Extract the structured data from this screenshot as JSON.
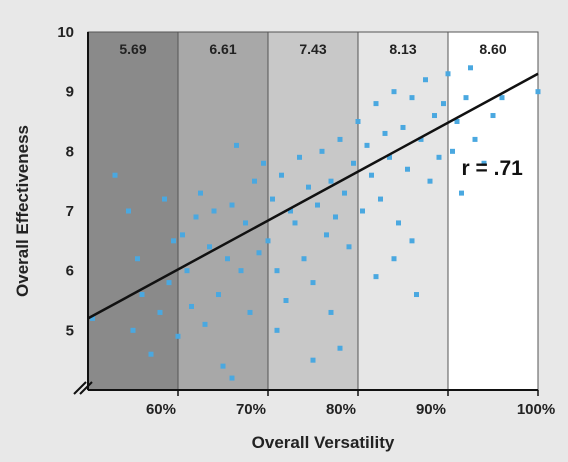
{
  "chart_data": {
    "type": "scatter",
    "title": "",
    "xlabel": "Overall Versatility",
    "ylabel": "Overall Effectiveness",
    "xlim": [
      50,
      100
    ],
    "ylim": [
      4,
      10
    ],
    "xticks": [
      {
        "value": 60,
        "label": "60%"
      },
      {
        "value": 70,
        "label": "70%"
      },
      {
        "value": 80,
        "label": "80%"
      },
      {
        "value": 90,
        "label": "90%"
      },
      {
        "value": 100,
        "label": "100%"
      }
    ],
    "yticks": [
      {
        "value": 5,
        "label": "5"
      },
      {
        "value": 6,
        "label": "6"
      },
      {
        "value": 7,
        "label": "7"
      },
      {
        "value": 8,
        "label": "8"
      },
      {
        "value": 9,
        "label": "9"
      },
      {
        "value": 10,
        "label": "10"
      }
    ],
    "bands": [
      {
        "from": 50,
        "to": 60,
        "label": "5.69",
        "color": "#8a8a8a"
      },
      {
        "from": 60,
        "to": 70,
        "label": "6.61",
        "color": "#a8a8a8"
      },
      {
        "from": 70,
        "to": 80,
        "label": "7.43",
        "color": "#c8c8c8"
      },
      {
        "from": 80,
        "to": 90,
        "label": "8.13",
        "color": "#e6e6e6"
      },
      {
        "from": 90,
        "to": 100,
        "label": "8.60",
        "color": "#ffffff"
      }
    ],
    "trendline": {
      "x": [
        50,
        100
      ],
      "y": [
        5.2,
        9.3
      ]
    },
    "annotation": {
      "text": "r = .71",
      "x": 91.5,
      "y": 7.6
    },
    "axis_break": true,
    "point_color": "#4aa8e0",
    "series": [
      {
        "points": [
          [
            50.5,
            5.2
          ],
          [
            53,
            7.6
          ],
          [
            54.5,
            7.0
          ],
          [
            55,
            5.0
          ],
          [
            55.5,
            6.2
          ],
          [
            56,
            5.6
          ],
          [
            57,
            4.6
          ],
          [
            58,
            5.3
          ],
          [
            58.5,
            7.2
          ],
          [
            59,
            5.8
          ],
          [
            59.5,
            6.5
          ],
          [
            60,
            4.9
          ],
          [
            60.5,
            6.6
          ],
          [
            61,
            6.0
          ],
          [
            61.5,
            5.4
          ],
          [
            62,
            6.9
          ],
          [
            62.5,
            7.3
          ],
          [
            63,
            5.1
          ],
          [
            63.5,
            6.4
          ],
          [
            64,
            7.0
          ],
          [
            64.5,
            5.6
          ],
          [
            65,
            4.4
          ],
          [
            65.5,
            6.2
          ],
          [
            66,
            7.1
          ],
          [
            66.5,
            8.1
          ],
          [
            67,
            6.0
          ],
          [
            67.5,
            6.8
          ],
          [
            68,
            5.3
          ],
          [
            68.5,
            7.5
          ],
          [
            69,
            6.3
          ],
          [
            69.5,
            7.8
          ],
          [
            70,
            6.5
          ],
          [
            70.5,
            7.2
          ],
          [
            71,
            6.0
          ],
          [
            71.5,
            7.6
          ],
          [
            72,
            5.5
          ],
          [
            72.5,
            7.0
          ],
          [
            73,
            6.8
          ],
          [
            73.5,
            7.9
          ],
          [
            74,
            6.2
          ],
          [
            74.5,
            7.4
          ],
          [
            75,
            5.8
          ],
          [
            75.5,
            7.1
          ],
          [
            76,
            8.0
          ],
          [
            76.5,
            6.6
          ],
          [
            77,
            7.5
          ],
          [
            77.5,
            6.9
          ],
          [
            78,
            8.2
          ],
          [
            78.5,
            7.3
          ],
          [
            79,
            6.4
          ],
          [
            79.5,
            7.8
          ],
          [
            80,
            8.5
          ],
          [
            80.5,
            7.0
          ],
          [
            81,
            8.1
          ],
          [
            81.5,
            7.6
          ],
          [
            82,
            8.8
          ],
          [
            82.5,
            7.2
          ],
          [
            83,
            8.3
          ],
          [
            83.5,
            7.9
          ],
          [
            84,
            9.0
          ],
          [
            84.5,
            6.8
          ],
          [
            85,
            8.4
          ],
          [
            85.5,
            7.7
          ],
          [
            86,
            8.9
          ],
          [
            86.5,
            5.6
          ],
          [
            87,
            8.2
          ],
          [
            87.5,
            9.2
          ],
          [
            88,
            7.5
          ],
          [
            88.5,
            8.6
          ],
          [
            89,
            7.9
          ],
          [
            89.5,
            8.8
          ],
          [
            90,
            9.3
          ],
          [
            90.5,
            8.0
          ],
          [
            91,
            8.5
          ],
          [
            91.5,
            7.3
          ],
          [
            92,
            8.9
          ],
          [
            92.5,
            9.4
          ],
          [
            93,
            8.2
          ],
          [
            94,
            7.8
          ],
          [
            95,
            8.6
          ],
          [
            96,
            8.9
          ],
          [
            100,
            9.0
          ],
          [
            66,
            4.2
          ],
          [
            71,
            5.0
          ],
          [
            75,
            4.5
          ],
          [
            77,
            5.3
          ],
          [
            78,
            4.7
          ],
          [
            82,
            5.9
          ],
          [
            84,
            6.2
          ],
          [
            86,
            6.5
          ]
        ]
      }
    ]
  }
}
